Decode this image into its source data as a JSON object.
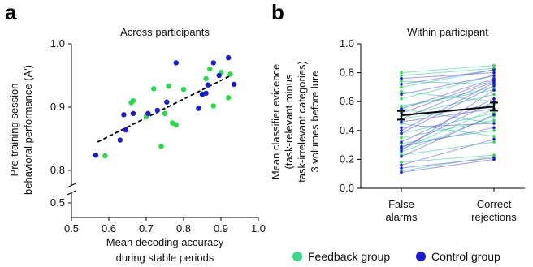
{
  "colors": {
    "feedback": "#22dd44",
    "control": "#1a1ad8",
    "feedback_line": "#33cc99",
    "control_line": "#6655ee",
    "mean_line": "#000000"
  },
  "legend": [
    {
      "label": "Feedback group",
      "color": "#33dd88"
    },
    {
      "label": "Control group",
      "color": "#1a1ad8"
    }
  ],
  "chart_data": [
    {
      "panel": "a",
      "type": "scatter",
      "title": "Across participants",
      "xlabel": [
        "Mean decoding accuracy",
        "during stable periods"
      ],
      "ylabel": [
        "Pre-training session",
        "behavioral performance (A′)"
      ],
      "xlim": [
        0.5,
        1.0
      ],
      "ylim": [
        0.5,
        1.0
      ],
      "xticks": [
        "0.5",
        "0.6",
        "0.7",
        "0.8",
        "0.9",
        "1.0"
      ],
      "yticks": [
        "0.5",
        "0.8",
        "0.9",
        "1.0"
      ],
      "axis_break": true,
      "fit_line": {
        "style": "dashed",
        "x": [
          0.57,
          0.93
        ],
        "y": [
          0.845,
          0.951
        ]
      },
      "series": [
        {
          "name": "Feedback group",
          "points": [
            [
              0.59,
              0.823
            ],
            [
              0.66,
              0.907
            ],
            [
              0.665,
              0.91
            ],
            [
              0.7,
              0.885
            ],
            [
              0.72,
              0.929
            ],
            [
              0.74,
              0.838
            ],
            [
              0.75,
              0.89
            ],
            [
              0.76,
              0.933
            ],
            [
              0.77,
              0.875
            ],
            [
              0.78,
              0.872
            ],
            [
              0.85,
              0.921
            ],
            [
              0.86,
              0.945
            ],
            [
              0.87,
              0.96
            ],
            [
              0.88,
              0.902
            ],
            [
              0.9,
              0.955
            ],
            [
              0.92,
              0.915
            ],
            [
              0.925,
              0.952
            ],
            [
              0.8,
              0.928
            ]
          ]
        },
        {
          "name": "Control group",
          "points": [
            [
              0.565,
              0.824
            ],
            [
              0.63,
              0.848
            ],
            [
              0.64,
              0.888
            ],
            [
              0.645,
              0.864
            ],
            [
              0.665,
              0.89
            ],
            [
              0.705,
              0.89
            ],
            [
              0.73,
              0.895
            ],
            [
              0.755,
              0.908
            ],
            [
              0.78,
              0.97
            ],
            [
              0.84,
              0.898
            ],
            [
              0.85,
              0.92
            ],
            [
              0.86,
              0.922
            ],
            [
              0.865,
              0.935
            ],
            [
              0.88,
              0.97
            ],
            [
              0.895,
              0.95
            ],
            [
              0.92,
              0.978
            ],
            [
              0.935,
              0.936
            ]
          ]
        }
      ]
    },
    {
      "panel": "b",
      "type": "line",
      "title": "Within participant",
      "ylabel": [
        "Mean classifier evidence",
        "(task-relevant minus",
        "task-irrelevant categories)",
        "3 volumes before lure"
      ],
      "categories": [
        "False alarms",
        "Correct rejections"
      ],
      "category_labels": [
        [
          "False",
          "alarms"
        ],
        [
          "Correct",
          "rejections"
        ]
      ],
      "ylim": [
        0.0,
        1.0
      ],
      "yticks": [
        "0.0",
        "0.2",
        "0.4",
        "0.6",
        "0.8",
        "1.0"
      ],
      "mean": {
        "values": [
          0.505,
          0.565
        ],
        "error": [
          0.03,
          0.028
        ]
      },
      "series": [
        {
          "name": "Feedback group",
          "pairs": [
            [
              0.8,
              0.85
            ],
            [
              0.78,
              0.83
            ],
            [
              0.74,
              0.72
            ],
            [
              0.7,
              0.82
            ],
            [
              0.67,
              0.6
            ],
            [
              0.62,
              0.78
            ],
            [
              0.57,
              0.68
            ],
            [
              0.56,
              0.7
            ],
            [
              0.55,
              0.45
            ],
            [
              0.5,
              0.65
            ],
            [
              0.48,
              0.58
            ],
            [
              0.45,
              0.36
            ],
            [
              0.38,
              0.52
            ],
            [
              0.35,
              0.47
            ],
            [
              0.31,
              0.4
            ],
            [
              0.27,
              0.55
            ],
            [
              0.25,
              0.5
            ],
            [
              0.23,
              0.32
            ],
            [
              0.18,
              0.23
            ],
            [
              0.12,
              0.22
            ]
          ]
        },
        {
          "name": "Control group",
          "pairs": [
            [
              0.76,
              0.8
            ],
            [
              0.72,
              0.82
            ],
            [
              0.65,
              0.78
            ],
            [
              0.55,
              0.76
            ],
            [
              0.52,
              0.75
            ],
            [
              0.48,
              0.74
            ],
            [
              0.46,
              0.55
            ],
            [
              0.42,
              0.45
            ],
            [
              0.38,
              0.71
            ],
            [
              0.32,
              0.62
            ],
            [
              0.29,
              0.42
            ],
            [
              0.28,
              0.6
            ],
            [
              0.26,
              0.68
            ],
            [
              0.22,
              0.51
            ],
            [
              0.16,
              0.34
            ],
            [
              0.14,
              0.21
            ],
            [
              0.11,
              0.2
            ],
            [
              0.4,
              0.73
            ]
          ]
        }
      ]
    }
  ]
}
